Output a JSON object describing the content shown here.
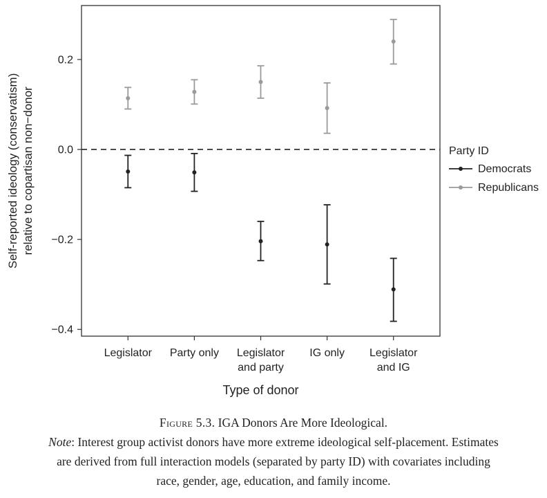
{
  "chart_data": {
    "type": "scatter",
    "subtype": "point-estimates-with-error-bars",
    "xlabel": "Type of donor",
    "ylabel_lines": [
      "Self-reported ideology (conservatism)",
      "relative to copartisan non−donor"
    ],
    "categories": [
      [
        "Legislator"
      ],
      [
        "Party only"
      ],
      [
        "Legislator",
        "and party"
      ],
      [
        "IG only"
      ],
      [
        "Legislator",
        "and IG"
      ]
    ],
    "yticks": [
      {
        "value": 0.2,
        "label": "0.2"
      },
      {
        "value": 0.0,
        "label": "0.0"
      },
      {
        "value": -0.2,
        "label": "−0.2"
      },
      {
        "value": -0.4,
        "label": "−0.4"
      }
    ],
    "ylim": [
      -0.415,
      0.32
    ],
    "reference_line": {
      "y": 0.0,
      "style": "dashed"
    },
    "legend": {
      "title": "Party ID",
      "placement": "right"
    },
    "series": [
      {
        "name": "Democrats",
        "color": "#222222",
        "values": [
          -0.049,
          -0.051,
          -0.204,
          -0.211,
          -0.311
        ],
        "lower": [
          -0.085,
          -0.093,
          -0.247,
          -0.299,
          -0.382
        ],
        "upper": [
          -0.013,
          -0.009,
          -0.16,
          -0.123,
          -0.242
        ]
      },
      {
        "name": "Republicans",
        "color": "#9a9a9a",
        "values": [
          0.114,
          0.128,
          0.15,
          0.092,
          0.24
        ],
        "lower": [
          0.09,
          0.101,
          0.114,
          0.036,
          0.19
        ],
        "upper": [
          0.138,
          0.155,
          0.186,
          0.148,
          0.289
        ]
      }
    ],
    "grid": false
  },
  "caption": {
    "figure_label": "Figure 5.3.",
    "title": "IGA Donors Are More Ideological.",
    "note_label": "Note",
    "note_lines": [
      ": Interest group activist donors have more extreme ideological self-placement. Estimates",
      "are derived from full interaction models (separated by party ID) with covariates including",
      "race, gender, age, education, and family income."
    ]
  }
}
